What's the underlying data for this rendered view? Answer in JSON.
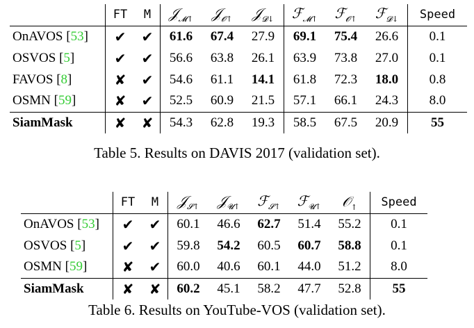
{
  "table5": {
    "caption": "Table 5. Results on DAVIS 2017 (validation set).",
    "col_ft": "FT",
    "col_m": "M",
    "metric_cols": [
      {
        "sym": "𝒥",
        "sub": "𝓜↑"
      },
      {
        "sym": "𝒥",
        "sub": "𝓞↑"
      },
      {
        "sym": "𝒥",
        "sub": "𝓓↓"
      },
      {
        "sym": "ℱ",
        "sub": "𝓜↑"
      },
      {
        "sym": "ℱ",
        "sub": "𝓞↑"
      },
      {
        "sym": "ℱ",
        "sub": "𝓓↓"
      }
    ],
    "col_speed": "Speed",
    "rows": [
      {
        "method": "OnAVOS",
        "ref": "53",
        "ft": "✔",
        "m": "✔",
        "vals": [
          "61.6",
          "67.4",
          "27.9",
          "69.1",
          "75.4",
          "26.6"
        ],
        "bold": [
          true,
          true,
          false,
          true,
          true,
          false
        ],
        "speed": "0.1",
        "speed_bold": false
      },
      {
        "method": "OSVOS",
        "ref": "5",
        "ft": "✔",
        "m": "✔",
        "vals": [
          "56.6",
          "63.8",
          "26.1",
          "63.9",
          "73.8",
          "27.0"
        ],
        "bold": [
          false,
          false,
          false,
          false,
          false,
          false
        ],
        "speed": "0.1",
        "speed_bold": false
      },
      {
        "method": "FAVOS",
        "ref": "8",
        "ft": "✘",
        "m": "✔",
        "vals": [
          "54.6",
          "61.1",
          "14.1",
          "61.8",
          "72.3",
          "18.0"
        ],
        "bold": [
          false,
          false,
          true,
          false,
          false,
          true
        ],
        "speed": "0.8",
        "speed_bold": false
      },
      {
        "method": "OSMN",
        "ref": "59",
        "ft": "✘",
        "m": "✔",
        "vals": [
          "52.5",
          "60.9",
          "21.5",
          "57.1",
          "66.1",
          "24.3"
        ],
        "bold": [
          false,
          false,
          false,
          false,
          false,
          false
        ],
        "speed": "8.0",
        "speed_bold": false
      },
      {
        "method": "SiamMask",
        "ref": "",
        "ft": "✘",
        "m": "✘",
        "vals": [
          "54.3",
          "62.8",
          "19.3",
          "58.5",
          "67.5",
          "20.9"
        ],
        "bold": [
          false,
          false,
          false,
          false,
          false,
          false
        ],
        "speed": "55",
        "speed_bold": true
      }
    ]
  },
  "table6": {
    "caption": "Table 6. Results on YouTube-VOS (validation set).",
    "col_ft": "FT",
    "col_m": "M",
    "metric_cols": [
      {
        "sym": "𝒥",
        "sub": "𝓢↑"
      },
      {
        "sym": "𝒥",
        "sub": "𝓤↑"
      },
      {
        "sym": "ℱ",
        "sub": "𝓢↑"
      },
      {
        "sym": "ℱ",
        "sub": "𝓤↑"
      },
      {
        "sym": "𝒪",
        "sub": "↑"
      }
    ],
    "col_speed": "Speed",
    "rows": [
      {
        "method": "OnAVOS",
        "ref": "53",
        "ft": "✔",
        "m": "✔",
        "vals": [
          "60.1",
          "46.6",
          "62.7",
          "51.4",
          "55.2"
        ],
        "bold": [
          false,
          false,
          true,
          false,
          false
        ],
        "speed": "0.1",
        "speed_bold": false
      },
      {
        "method": "OSVOS",
        "ref": "5",
        "ft": "✔",
        "m": "✔",
        "vals": [
          "59.8",
          "54.2",
          "60.5",
          "60.7",
          "58.8"
        ],
        "bold": [
          false,
          true,
          false,
          true,
          true
        ],
        "speed": "0.1",
        "speed_bold": false
      },
      {
        "method": "OSMN",
        "ref": "59",
        "ft": "✘",
        "m": "✔",
        "vals": [
          "60.0",
          "40.6",
          "60.1",
          "44.0",
          "51.2"
        ],
        "bold": [
          false,
          false,
          false,
          false,
          false
        ],
        "speed": "8.0",
        "speed_bold": false
      },
      {
        "method": "SiamMask",
        "ref": "",
        "ft": "✘",
        "m": "✘",
        "vals": [
          "60.2",
          "45.1",
          "58.2",
          "47.7",
          "52.8"
        ],
        "bold": [
          true,
          false,
          false,
          false,
          false
        ],
        "speed": "55",
        "speed_bold": true
      }
    ]
  },
  "colors": {
    "text": "#000000",
    "citation": "#33cc33"
  }
}
